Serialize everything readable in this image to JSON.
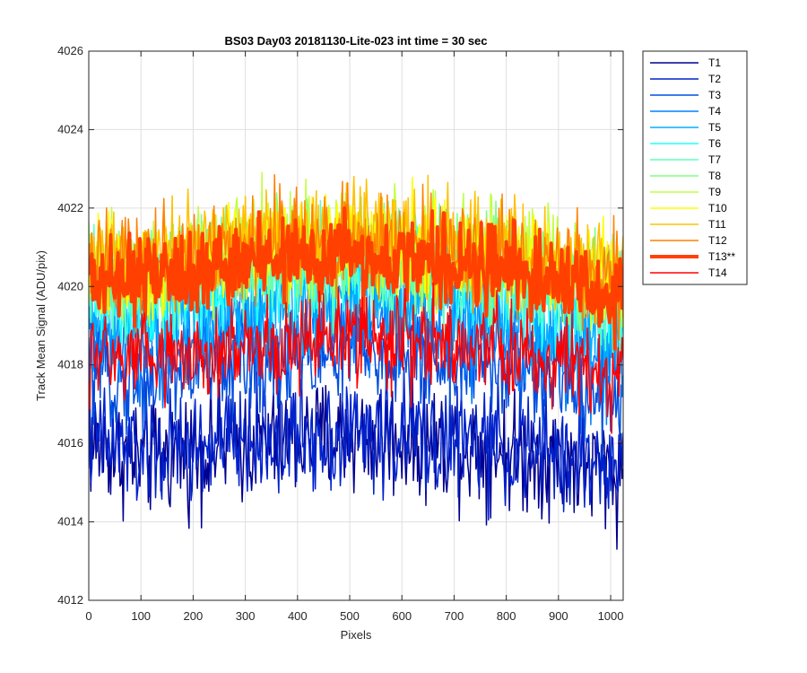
{
  "chart_data": {
    "type": "line",
    "title": "BS03 Day03 20181130-Lite-023 int time = 30 sec",
    "xlabel": "Pixels",
    "ylabel": "Track Mean Signal (ADU/pix)",
    "xlim": [
      0,
      1024
    ],
    "ylim": [
      4012,
      4026
    ],
    "xticks": [
      0,
      100,
      200,
      300,
      400,
      500,
      600,
      700,
      800,
      900,
      1000
    ],
    "yticks": [
      4012,
      4014,
      4016,
      4018,
      4020,
      4022,
      4024,
      4026
    ],
    "grid": true,
    "legend_position": "outside-top-right",
    "noise_note": "Each track is a noisy ~1024-sample trace; values below are an approximate smooth mean profile per track plus typical peak-to-peak noise amplitude read from the plot.",
    "profile_x": [
      0,
      100,
      200,
      300,
      400,
      500,
      600,
      700,
      800,
      900,
      1024
    ],
    "series": [
      {
        "name": "T1",
        "color": "#00008f",
        "width": 1.5,
        "mean": [
          4016.0,
          4015.6,
          4015.8,
          4016.0,
          4016.1,
          4016.2,
          4016.1,
          4016.0,
          4015.8,
          4015.6,
          4015.2
        ],
        "noise": 2.2
      },
      {
        "name": "T2",
        "color": "#0022cc",
        "width": 1.5,
        "mean": [
          4016.2,
          4015.7,
          4015.9,
          4016.1,
          4016.2,
          4016.3,
          4016.2,
          4016.1,
          4015.9,
          4015.7,
          4015.3
        ],
        "noise": 2.2
      },
      {
        "name": "T3",
        "color": "#0050e0",
        "width": 1.5,
        "mean": [
          4017.8,
          4017.6,
          4017.9,
          4018.1,
          4018.2,
          4018.3,
          4018.2,
          4018.1,
          4017.9,
          4017.6,
          4017.2
        ],
        "noise": 2.0
      },
      {
        "name": "T4",
        "color": "#0080ff",
        "width": 1.5,
        "mean": [
          4018.6,
          4018.4,
          4018.7,
          4018.9,
          4019.0,
          4019.1,
          4019.0,
          4018.9,
          4018.7,
          4018.4,
          4018.0
        ],
        "noise": 2.0
      },
      {
        "name": "T5",
        "color": "#00b0ff",
        "width": 1.5,
        "mean": [
          4019.2,
          4019.1,
          4019.4,
          4019.6,
          4019.7,
          4019.8,
          4019.7,
          4019.6,
          4019.4,
          4019.1,
          4018.7
        ],
        "noise": 2.0
      },
      {
        "name": "T6",
        "color": "#20ffff",
        "width": 1.5,
        "mean": [
          4019.8,
          4019.7,
          4020.0,
          4020.2,
          4020.3,
          4020.4,
          4020.3,
          4020.2,
          4020.0,
          4019.7,
          4019.3
        ],
        "noise": 2.0
      },
      {
        "name": "T7",
        "color": "#60ffc0",
        "width": 1.5,
        "mean": [
          4020.0,
          4019.9,
          4020.2,
          4020.4,
          4020.5,
          4020.6,
          4020.5,
          4020.4,
          4020.2,
          4019.9,
          4019.5
        ],
        "noise": 2.0
      },
      {
        "name": "T8",
        "color": "#80ff80",
        "width": 1.5,
        "mean": [
          4020.4,
          4020.3,
          4020.6,
          4020.8,
          4020.9,
          4021.0,
          4020.9,
          4020.8,
          4020.6,
          4020.3,
          4019.9
        ],
        "noise": 2.0
      },
      {
        "name": "T9",
        "color": "#c0ff40",
        "width": 1.5,
        "mean": [
          4020.6,
          4020.5,
          4020.8,
          4021.0,
          4021.1,
          4021.2,
          4021.1,
          4021.0,
          4020.8,
          4020.5,
          4020.1
        ],
        "noise": 2.0
      },
      {
        "name": "T10",
        "color": "#ffff00",
        "width": 1.5,
        "mean": [
          4020.6,
          4020.5,
          4020.8,
          4021.0,
          4021.1,
          4021.2,
          4021.1,
          4021.0,
          4020.8,
          4020.5,
          4020.1
        ],
        "noise": 2.0
      },
      {
        "name": "T11",
        "color": "#ffc000",
        "width": 1.5,
        "mean": [
          4020.8,
          4020.7,
          4021.0,
          4021.2,
          4021.3,
          4021.4,
          4021.3,
          4021.2,
          4021.0,
          4020.7,
          4020.3
        ],
        "noise": 2.0
      },
      {
        "name": "T12",
        "color": "#ff8000",
        "width": 1.5,
        "mean": [
          4020.6,
          4020.5,
          4020.8,
          4021.0,
          4021.1,
          4021.2,
          4021.1,
          4021.0,
          4020.8,
          4020.5,
          4020.1
        ],
        "noise": 2.0
      },
      {
        "name": "T13**",
        "color": "#ff4000",
        "width": 4,
        "mean": [
          4020.2,
          4020.1,
          4020.4,
          4020.6,
          4020.7,
          4020.8,
          4020.7,
          4020.6,
          4020.4,
          4020.1,
          4019.7
        ],
        "noise": 1.6
      },
      {
        "name": "T14",
        "color": "#ff0000",
        "width": 1.5,
        "mean": [
          4018.2,
          4018.0,
          4018.3,
          4018.5,
          4018.6,
          4018.7,
          4018.6,
          4018.5,
          4018.3,
          4018.0,
          4017.6
        ],
        "noise": 1.8
      }
    ]
  }
}
